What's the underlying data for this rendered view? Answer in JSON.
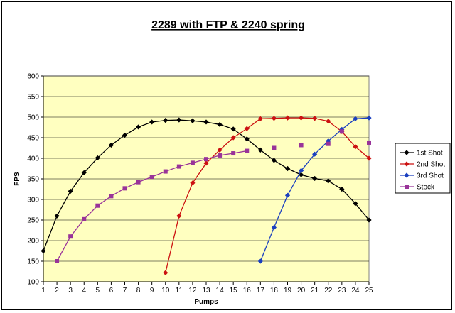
{
  "chart_data": {
    "type": "line",
    "title": "2289 with FTP & 2240 spring",
    "xlabel": "Pumps",
    "ylabel": "FPS",
    "xlim": [
      1,
      25
    ],
    "ylim": [
      100,
      600
    ],
    "x_ticks": [
      1,
      2,
      3,
      4,
      5,
      6,
      7,
      8,
      9,
      10,
      11,
      12,
      13,
      14,
      15,
      16,
      17,
      18,
      19,
      20,
      21,
      22,
      23,
      24,
      25
    ],
    "y_ticks": [
      100,
      150,
      200,
      250,
      300,
      350,
      400,
      450,
      500,
      550,
      600
    ],
    "grid": true,
    "plot_background": "#ffffc0",
    "legend_position": "right",
    "series": [
      {
        "name": "1st Shot",
        "color": "#000000",
        "marker": "diamond",
        "line": true,
        "x": [
          1,
          2,
          3,
          4,
          5,
          6,
          7,
          8,
          9,
          10,
          11,
          12,
          13,
          14,
          15,
          16,
          17,
          18,
          19,
          20,
          21,
          22,
          23,
          24,
          25
        ],
        "y": [
          175,
          260,
          320,
          365,
          401,
          432,
          456,
          476,
          488,
          492,
          493,
          491,
          488,
          482,
          471,
          447,
          420,
          395,
          375,
          360,
          351,
          345,
          325,
          290,
          250
        ]
      },
      {
        "name": "2nd Shot",
        "color": "#cc1111",
        "marker": "diamond",
        "line": true,
        "x": [
          10,
          11,
          12,
          13,
          14,
          15,
          16,
          17,
          18,
          19,
          20,
          21,
          22,
          23,
          24,
          25
        ],
        "y": [
          122,
          260,
          340,
          388,
          420,
          450,
          472,
          496,
          497,
          498,
          498,
          497,
          490,
          465,
          428,
          400
        ]
      },
      {
        "name": "3rd Shot",
        "color": "#1a3fbf",
        "marker": "diamond",
        "line": true,
        "x": [
          17,
          18,
          19,
          20,
          21,
          22,
          23,
          24,
          25
        ],
        "y": [
          150,
          232,
          310,
          370,
          410,
          442,
          470,
          496,
          498
        ]
      },
      {
        "name": "Stock",
        "color": "#993399",
        "marker": "square",
        "line": true,
        "line_until_index": 14,
        "x": [
          2,
          3,
          4,
          5,
          6,
          7,
          8,
          9,
          10,
          11,
          12,
          13,
          14,
          15,
          16,
          18,
          20,
          22,
          23,
          25
        ],
        "y": [
          150,
          210,
          252,
          285,
          308,
          327,
          342,
          355,
          368,
          380,
          389,
          398,
          407,
          412,
          418,
          425,
          432,
          435,
          465,
          438
        ]
      }
    ]
  }
}
